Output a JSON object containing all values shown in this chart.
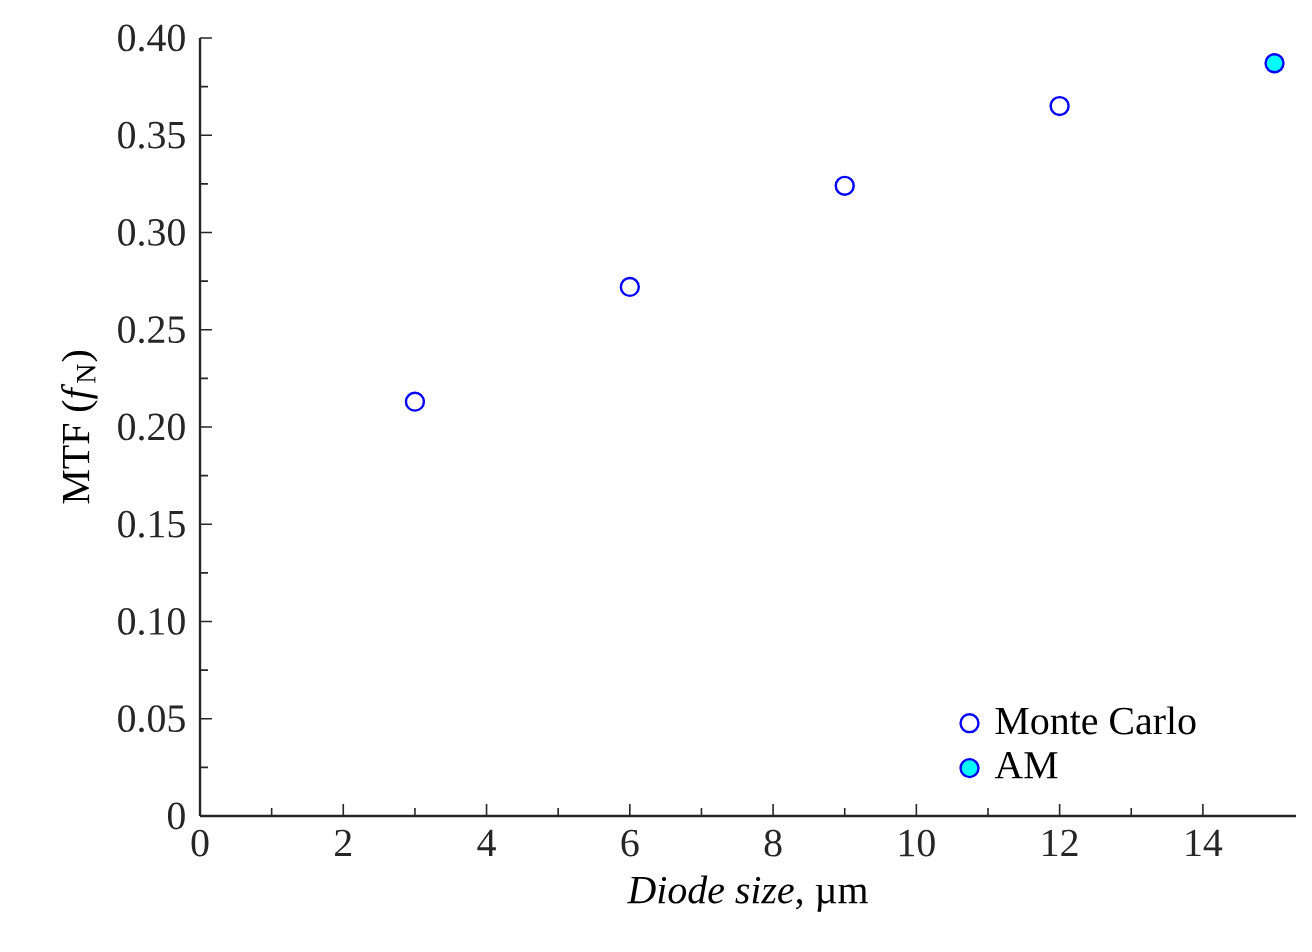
{
  "chart_data": {
    "type": "scatter",
    "xlabel": "*Diode size*, µm",
    "ylabel": "MTF (*f*$_{N}$)",
    "xlim": [
      0,
      15.3
    ],
    "xticks": [
      0,
      2,
      4,
      6,
      8,
      10,
      12,
      14
    ],
    "ylim": [
      0,
      0.4
    ],
    "yticks": [
      0,
      0.05,
      {
        "value": 0.1,
        "label": "0.10"
      },
      0.15,
      {
        "value": 0.2,
        "label": "0.20"
      },
      0.25,
      {
        "value": 0.3,
        "label": "0.30"
      },
      0.35,
      {
        "value": 0.4,
        "label": "0.40"
      }
    ],
    "grid": false,
    "legend": "bottom right",
    "series": [
      {
        "name": "Monte Carlo",
        "color": "#0000ff",
        "x": [
          3,
          6,
          9,
          12
        ],
        "values": [
          0.213,
          0.272,
          0.324,
          0.365
        ]
      },
      {
        "name": "AM",
        "color": "#00ffff",
        "x": [
          15
        ],
        "values": [
          0.387
        ]
      }
    ]
  }
}
